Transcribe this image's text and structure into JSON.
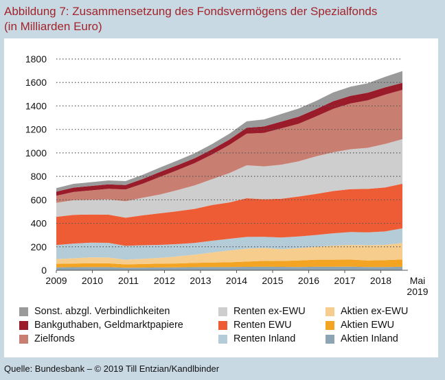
{
  "header": {
    "title_line1": "Abbildung 7: Zusammensetzung des Fondsvermögens der Spezialfonds",
    "title_line2": "(in Milliarden Euro)"
  },
  "footer": {
    "source": "Quelle: Bundesbank – © 2019 Till Entzian/Kandlbinder"
  },
  "chart_data": {
    "type": "area",
    "stacked": true,
    "title": "Abbildung 7: Zusammensetzung des Fondsvermögens der Spezialfonds",
    "subtitle": "(in Milliarden Euro)",
    "xlabel": "",
    "ylabel": "",
    "x_tick_labels": [
      "2009",
      "2010",
      "2011",
      "2012",
      "2013",
      "2014",
      "2015",
      "2016",
      "2017",
      "2018",
      "Mai 2019"
    ],
    "y_ticks": [
      0,
      200,
      400,
      600,
      800,
      1000,
      1200,
      1400,
      1600,
      1800
    ],
    "ylim": [
      0,
      1800
    ],
    "grid": "horizontal dotted",
    "legend_position": "bottom",
    "x": [
      "2009",
      "2009.5",
      "2010",
      "2010.5",
      "2011",
      "2011.5",
      "2012",
      "2012.5",
      "2013",
      "2013.5",
      "2014",
      "2014.5",
      "2015",
      "2015.5",
      "2016",
      "2016.5",
      "2017",
      "2017.5",
      "2018",
      "2018.5",
      "Mai 2019"
    ],
    "series": [
      {
        "name": "Aktien Inland",
        "color": "#8da5b3",
        "values": [
          25,
          26,
          27,
          27,
          22,
          23,
          24,
          25,
          27,
          28,
          28,
          29,
          30,
          29,
          28,
          30,
          30,
          31,
          28,
          28,
          30
        ]
      },
      {
        "name": "Aktien EWU",
        "color": "#f2a422",
        "values": [
          30,
          31,
          33,
          32,
          28,
          30,
          32,
          33,
          36,
          38,
          40,
          45,
          50,
          50,
          55,
          60,
          60,
          60,
          55,
          58,
          62
        ]
      },
      {
        "name": "Aktien ex-EWU",
        "color": "#f7cd8e",
        "values": [
          40,
          45,
          50,
          50,
          40,
          45,
          50,
          60,
          70,
          85,
          100,
          110,
          110,
          100,
          105,
          110,
          120,
          125,
          130,
          130,
          140
        ]
      },
      {
        "name": "Renten Inland",
        "color": "#b4ccd8",
        "values": [
          120,
          125,
          125,
          125,
          118,
          115,
          110,
          105,
          100,
          100,
          100,
          100,
          95,
          100,
          100,
          100,
          105,
          110,
          110,
          115,
          125
        ]
      },
      {
        "name": "Renten EWU",
        "color": "#ee5c36",
        "values": [
          240,
          245,
          240,
          240,
          240,
          255,
          270,
          280,
          290,
          305,
          310,
          330,
          320,
          330,
          340,
          350,
          360,
          365,
          370,
          375,
          380
        ]
      },
      {
        "name": "Renten ex-EWU",
        "color": "#cecece",
        "values": [
          120,
          125,
          125,
          130,
          140,
          150,
          160,
          180,
          200,
          220,
          250,
          280,
          280,
          290,
          300,
          320,
          330,
          340,
          350,
          370,
          380
        ]
      },
      {
        "name": "Zielfonds",
        "color": "#c87f72",
        "values": [
          60,
          70,
          80,
          90,
          100,
          120,
          150,
          170,
          190,
          210,
          240,
          270,
          285,
          310,
          320,
          340,
          370,
          390,
          405,
          420,
          420
        ]
      },
      {
        "name": "Bankguthaben, Geldmarktpapiere",
        "color": "#9a1b2a",
        "values": [
          35,
          37,
          38,
          38,
          38,
          40,
          42,
          42,
          42,
          44,
          45,
          50,
          55,
          58,
          60,
          62,
          65,
          65,
          65,
          62,
          60
        ]
      },
      {
        "name": "Sonst. abzgl. Verbindlichkeiten",
        "color": "#9a9a9a",
        "values": [
          30,
          32,
          32,
          33,
          34,
          36,
          38,
          40,
          42,
          45,
          50,
          55,
          60,
          65,
          70,
          70,
          75,
          78,
          80,
          90,
          100
        ]
      }
    ]
  },
  "legend": [
    {
      "label": "Sonst. abzgl. Verbindlichkeiten",
      "color": "#9a9a9a"
    },
    {
      "label": "Renten ex-EWU",
      "color": "#cecece"
    },
    {
      "label": "Aktien ex-EWU",
      "color": "#f7cd8e"
    },
    {
      "label": "Bankguthaben, Geldmarktpapiere",
      "color": "#9a1b2a"
    },
    {
      "label": "Renten EWU",
      "color": "#ee5c36"
    },
    {
      "label": "Aktien EWU",
      "color": "#f2a422"
    },
    {
      "label": "Zielfonds",
      "color": "#c87f72"
    },
    {
      "label": "Renten Inland",
      "color": "#b4ccd8"
    },
    {
      "label": "Aktien Inland",
      "color": "#8da5b3"
    }
  ]
}
